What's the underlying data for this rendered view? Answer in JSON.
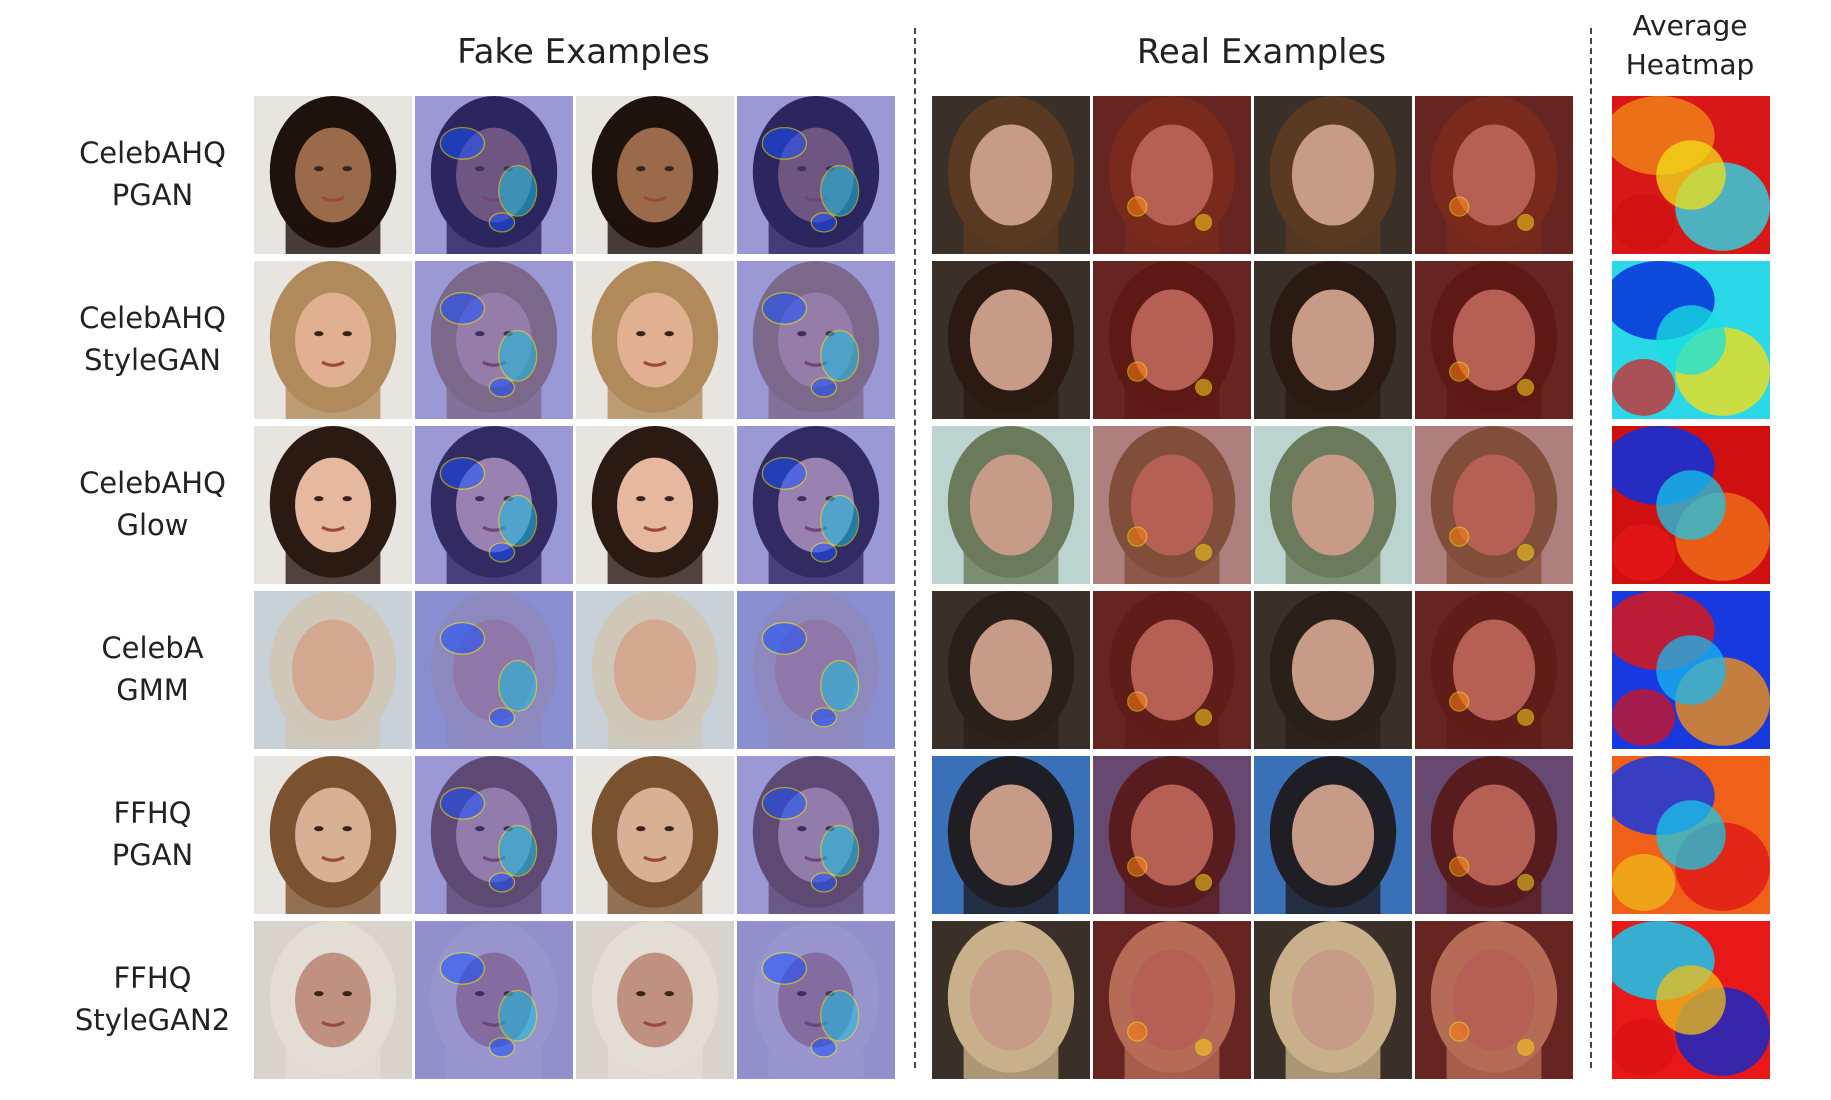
{
  "headers": {
    "fake": "Fake Examples",
    "real": "Real Examples",
    "average_line1": "Average",
    "average_line2": "Heatmap"
  },
  "rows": [
    {
      "dataset": "CelebAHQ",
      "model": "PGAN"
    },
    {
      "dataset": "CelebAHQ",
      "model": "StyleGAN"
    },
    {
      "dataset": "CelebAHQ",
      "model": "Glow"
    },
    {
      "dataset": "CelebA",
      "model": "GMM"
    },
    {
      "dataset": "FFHQ",
      "model": "PGAN"
    },
    {
      "dataset": "FFHQ",
      "model": "StyleGAN2"
    }
  ],
  "colors": {
    "fake_overlay": "#3b3fc8",
    "real_overlay": "#a01818",
    "contour": "#f4f000",
    "skin_light": "#e3b49a",
    "skin_dark": "#8a5a3e",
    "hair_dark": "#2a1a12",
    "hair_light": "#c9a070"
  }
}
